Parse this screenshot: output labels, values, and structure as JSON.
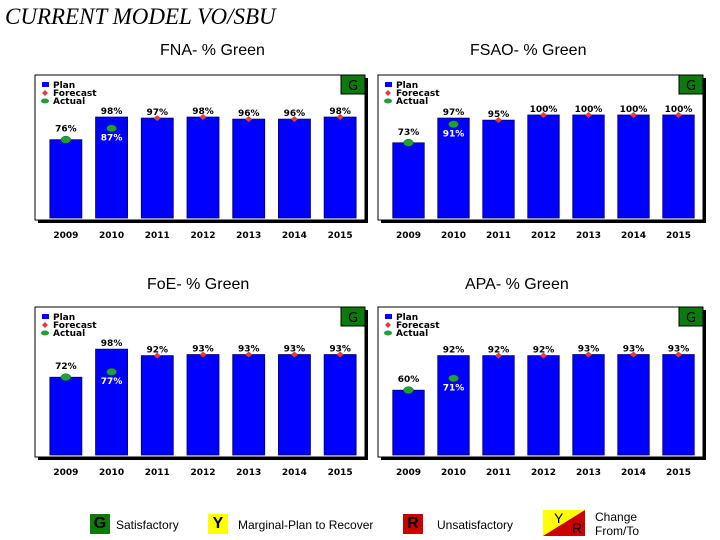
{
  "page_title": "CURRENT MODEL VO/SBU",
  "colors": {
    "bar": "#0000ff",
    "bar_edge": "#000066",
    "actual": "#22a037",
    "forecast": "#e83a3a",
    "green": "#0c7a0c",
    "yellow": "#ffff00",
    "red": "#cc0000"
  },
  "legend_footer": {
    "items": [
      {
        "badge": "G",
        "label": "Satisfactory",
        "color": "green"
      },
      {
        "badge": "Y",
        "label": "Marginal-Plan to Recover",
        "color": "yellow"
      },
      {
        "badge": "R",
        "label": "Unsatisfactory",
        "color": "red"
      }
    ],
    "change_badge_from": "Y",
    "change_badge_to": "R",
    "change_label_1": "Change",
    "change_label_2": "From/To"
  },
  "chart_data": [
    {
      "type": "bar",
      "title": "FNA- % Green",
      "status_badge": "G",
      "ylim": [
        0,
        100
      ],
      "legend": [
        "Plan",
        "Forecast",
        "Actual"
      ],
      "categories": [
        "2009",
        "2010",
        "2011",
        "2012",
        "2013",
        "2014",
        "2015"
      ],
      "series": [
        {
          "name": "Plan",
          "values": [
            76,
            98,
            97,
            98,
            96,
            96,
            98
          ]
        },
        {
          "name": "Forecast",
          "values": [
            null,
            null,
            97,
            98,
            96,
            96,
            98
          ]
        },
        {
          "name": "Actual",
          "values": [
            76,
            87,
            null,
            null,
            null,
            null,
            null
          ]
        }
      ],
      "data_labels": [
        "76%",
        "98%",
        "97%",
        "98%",
        "96%",
        "96%",
        "98%"
      ],
      "actual_labels": [
        null,
        "87%",
        null,
        null,
        null,
        null,
        null
      ]
    },
    {
      "type": "bar",
      "title": "FSAO- % Green",
      "status_badge": "G",
      "ylim": [
        0,
        100
      ],
      "legend": [
        "Plan",
        "Forecast",
        "Actual"
      ],
      "categories": [
        "2009",
        "2010",
        "2011",
        "2012",
        "2013",
        "2014",
        "2015"
      ],
      "series": [
        {
          "name": "Plan",
          "values": [
            73,
            97,
            95,
            100,
            100,
            100,
            100
          ]
        },
        {
          "name": "Forecast",
          "values": [
            null,
            null,
            95,
            100,
            100,
            100,
            100
          ]
        },
        {
          "name": "Actual",
          "values": [
            73,
            91,
            null,
            null,
            null,
            null,
            null
          ]
        }
      ],
      "data_labels": [
        "73%",
        "97%",
        "95%",
        "100%",
        "100%",
        "100%",
        "100%"
      ],
      "actual_labels": [
        null,
        "91%",
        null,
        null,
        null,
        null,
        null
      ]
    },
    {
      "type": "bar",
      "title": "FoE- % Green",
      "status_badge": "G",
      "ylim": [
        0,
        100
      ],
      "legend": [
        "Plan",
        "Forecast",
        "Actual"
      ],
      "categories": [
        "2009",
        "2010",
        "2011",
        "2012",
        "2013",
        "2014",
        "2015"
      ],
      "series": [
        {
          "name": "Plan",
          "values": [
            72,
            98,
            92,
            93,
            93,
            93,
            93
          ]
        },
        {
          "name": "Forecast",
          "values": [
            null,
            null,
            92,
            93,
            93,
            93,
            93
          ]
        },
        {
          "name": "Actual",
          "values": [
            72,
            77,
            null,
            null,
            null,
            null,
            null
          ]
        }
      ],
      "data_labels": [
        "72%",
        "98%",
        "92%",
        "93%",
        "93%",
        "93%",
        "93%"
      ],
      "actual_labels": [
        null,
        "77%",
        null,
        null,
        null,
        null,
        null
      ]
    },
    {
      "type": "bar",
      "title": "APA- % Green",
      "status_badge": "G",
      "ylim": [
        0,
        100
      ],
      "legend": [
        "Plan",
        "Forecast",
        "Actual"
      ],
      "categories": [
        "2009",
        "2010",
        "2011",
        "2012",
        "2013",
        "2014",
        "2015"
      ],
      "series": [
        {
          "name": "Plan",
          "values": [
            60,
            92,
            92,
            92,
            93,
            93,
            93
          ]
        },
        {
          "name": "Forecast",
          "values": [
            null,
            null,
            92,
            92,
            93,
            93,
            93
          ]
        },
        {
          "name": "Actual",
          "values": [
            60,
            71,
            null,
            null,
            null,
            null,
            null
          ]
        }
      ],
      "data_labels": [
        "60%",
        "92%",
        "92%",
        "92%",
        "93%",
        "93%",
        "93%"
      ],
      "actual_labels": [
        null,
        "71%",
        null,
        null,
        null,
        null,
        null
      ]
    }
  ]
}
